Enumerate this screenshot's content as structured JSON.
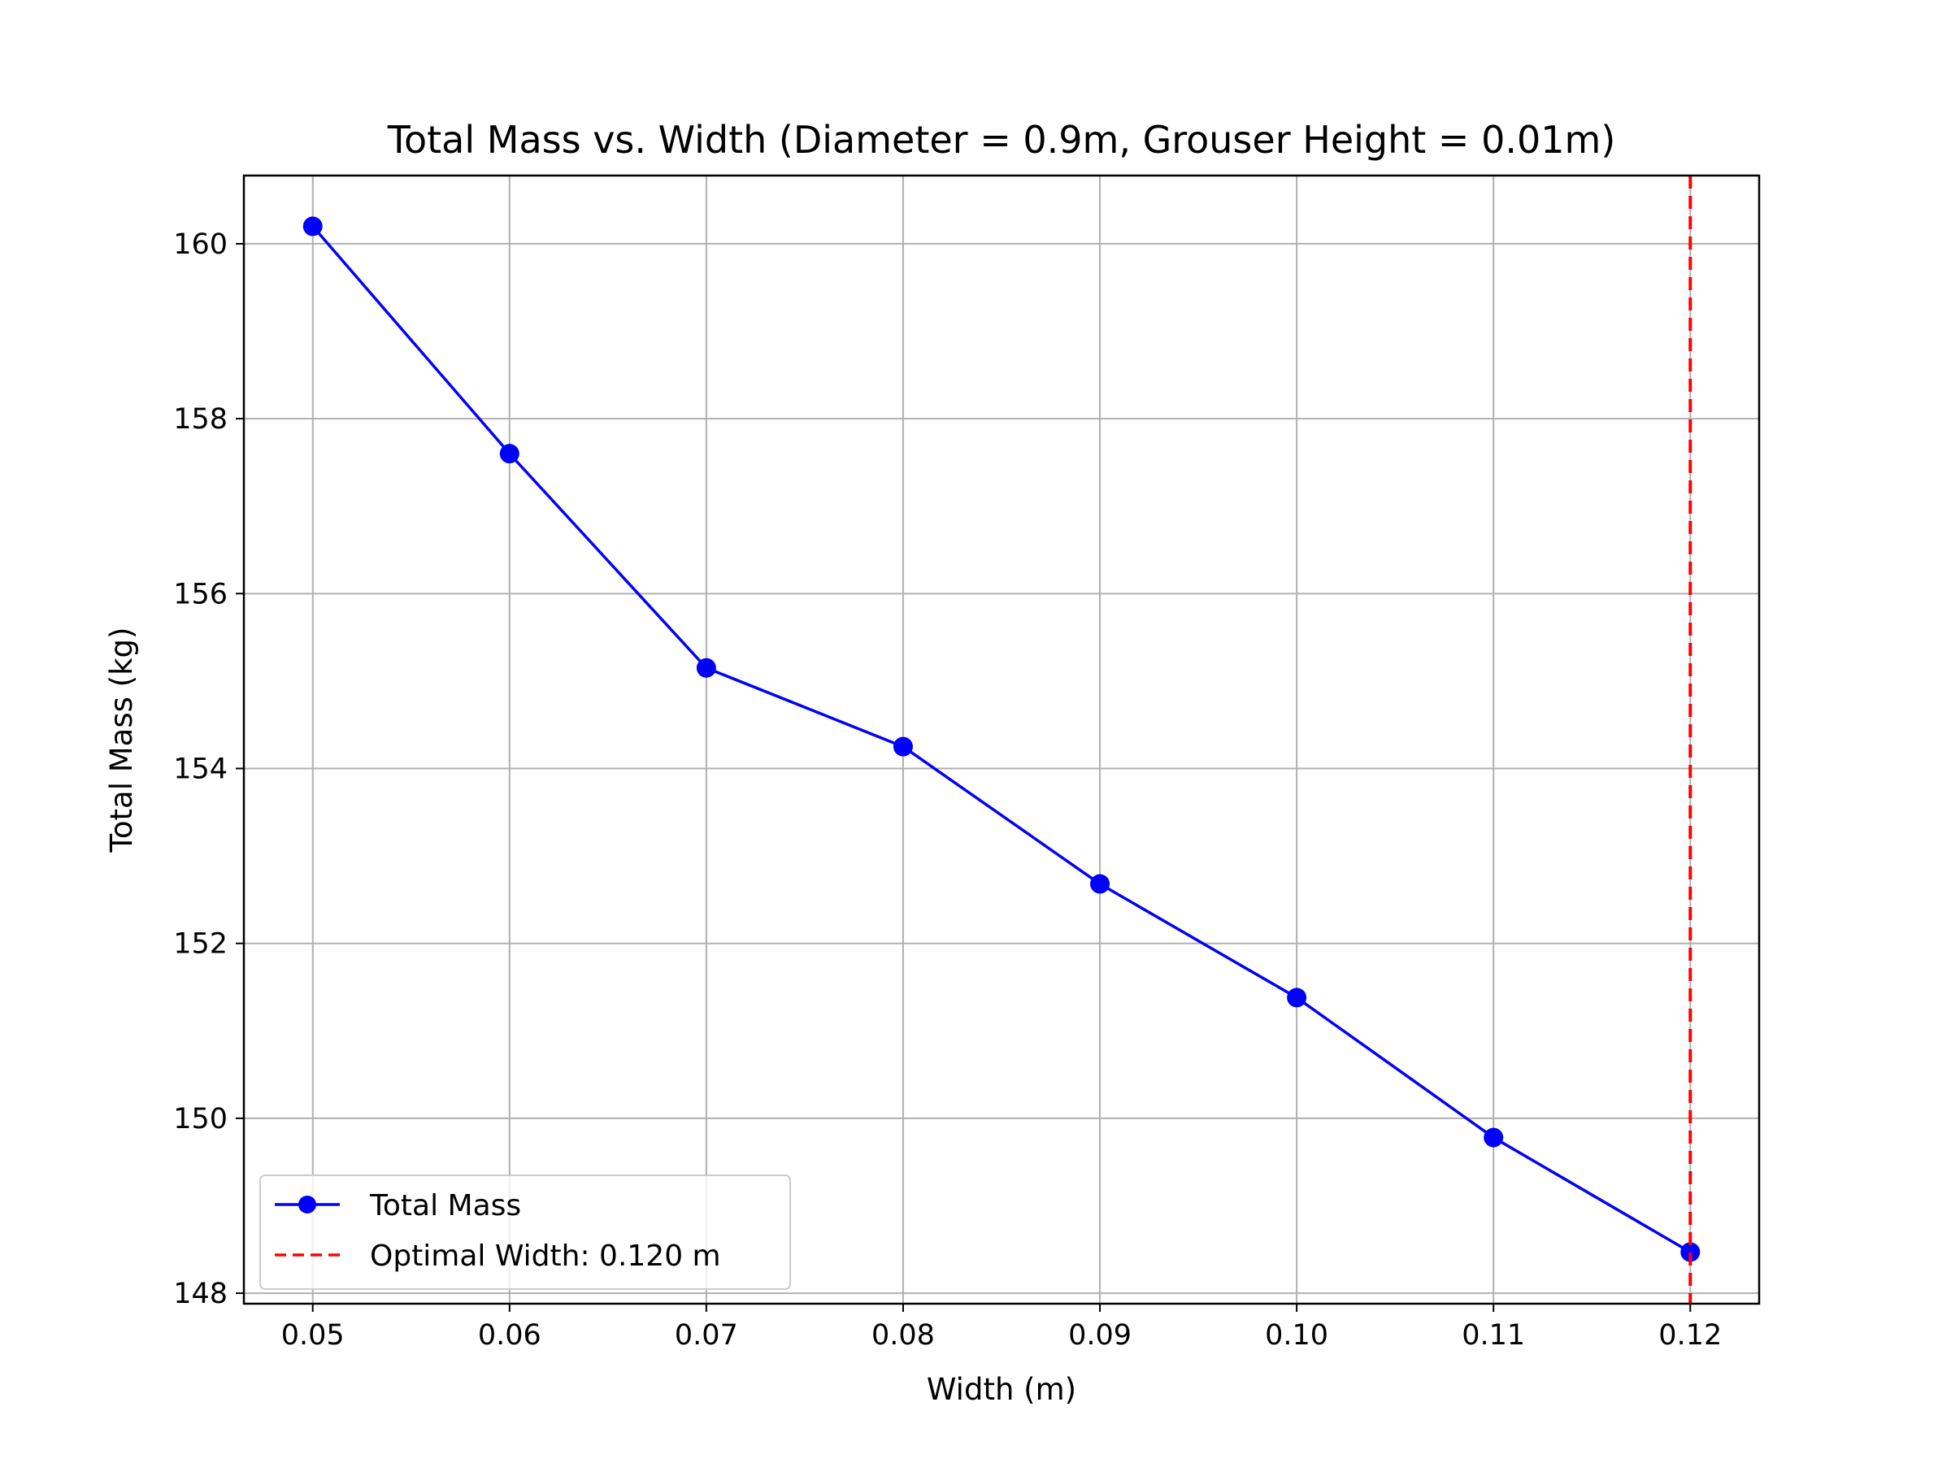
{
  "chart_data": {
    "type": "line",
    "title": "Total Mass vs. Width (Diameter = 0.9m, Grouser Height = 0.01m)",
    "xlabel": "Width (m)",
    "ylabel": "Total Mass (kg)",
    "xlim": [
      0.0465,
      0.1235
    ],
    "ylim": [
      147.88,
      160.78
    ],
    "xticks": [
      0.05,
      0.06,
      0.07,
      0.08,
      0.09,
      0.1,
      0.11,
      0.12
    ],
    "xtick_labels": [
      "0.05",
      "0.06",
      "0.07",
      "0.08",
      "0.09",
      "0.10",
      "0.11",
      "0.12"
    ],
    "yticks": [
      148,
      150,
      152,
      154,
      156,
      158,
      160
    ],
    "ytick_labels": [
      "148",
      "150",
      "152",
      "154",
      "156",
      "158",
      "160"
    ],
    "grid": true,
    "legend_position": "lower-left",
    "series": [
      {
        "name": "Total Mass",
        "color": "#0000ff",
        "marker": "circle",
        "x": [
          0.05,
          0.06,
          0.07,
          0.08,
          0.09,
          0.1,
          0.11,
          0.12
        ],
        "y": [
          160.2,
          157.6,
          155.15,
          154.25,
          152.68,
          151.38,
          149.78,
          148.47
        ]
      }
    ],
    "reference_lines": [
      {
        "name": "Optimal Width: 0.120 m",
        "orientation": "vertical",
        "x": 0.12,
        "color": "#ff0000",
        "style": "dashed"
      }
    ]
  }
}
